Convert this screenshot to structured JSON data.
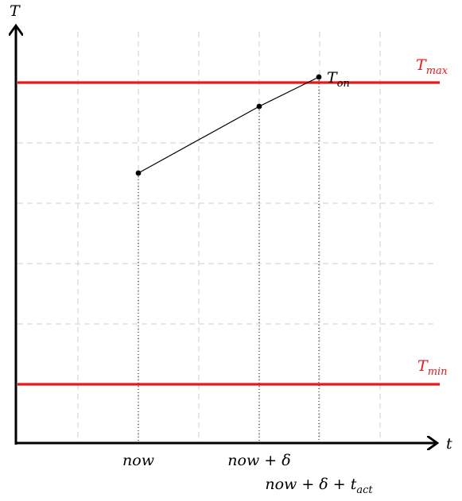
{
  "axes": {
    "x_label": "t",
    "y_label": "T"
  },
  "x_ticks": [
    {
      "label": "now"
    },
    {
      "label": "now + δ"
    },
    {
      "label": "now + δ + ",
      "sub": "act",
      "sub_base": "t"
    }
  ],
  "thresholds": {
    "max": {
      "base": "T",
      "sub": "max"
    },
    "min": {
      "base": "T",
      "sub": "min"
    },
    "color": "#e8191a"
  },
  "annotation": {
    "base": "T",
    "sub": "on"
  },
  "colors": {
    "axis": "#000000",
    "grid": "#cccccc",
    "line": "#000000"
  }
}
